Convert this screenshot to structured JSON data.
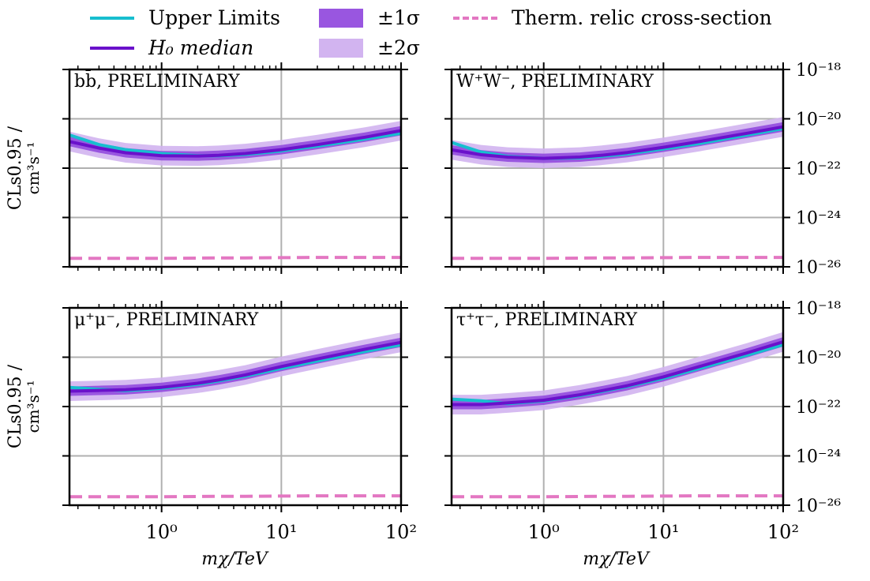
{
  "figure": {
    "legend": {
      "upper_limits": {
        "label": "Upper Limits",
        "color": "#17becf"
      },
      "median": {
        "label": "H₀ median",
        "color": "#6a11cb"
      },
      "sigma1": {
        "label": "±1σ",
        "color": "#8e44dd"
      },
      "sigma2": {
        "label": "±2σ",
        "color": "#d2b4f0"
      },
      "relic": {
        "label": "Therm. relic cross-section",
        "color": "#e377c2"
      }
    },
    "ylabel_main": "CLs0.95 /",
    "ylabel_unit": "cm³s⁻¹",
    "xlabel": "mχ/TeV",
    "grid_color": "#b0b0b0"
  },
  "chart_data": [
    {
      "type": "line",
      "title": "bb̄, PRELIMINARY",
      "xscale": "log",
      "yscale": "log",
      "xlim": [
        0.17,
        100
      ],
      "ylim": [
        1e-26,
        1e-18
      ],
      "xlabel": "mχ/TeV",
      "ylabel": "CLs^0.95 / cm^3 s^-1",
      "xticklabels": [
        "10⁰",
        "10¹",
        "10²"
      ],
      "yticklabels": [
        "10⁻¹⁸",
        "10⁻²⁰",
        "10⁻²²",
        "10⁻²⁴",
        "10⁻²⁶"
      ],
      "x": [
        0.17,
        0.3,
        0.5,
        1,
        2,
        3,
        5,
        10,
        20,
        50,
        100
      ],
      "series": [
        {
          "name": "Upper Limits",
          "values": [
            2.2e-21,
            9e-22,
            5.6e-22,
            3.9e-22,
            3.2e-22,
            3.2e-22,
            3.6e-22,
            5e-22,
            7.8e-22,
            1.5e-21,
            2.6e-21
          ]
        },
        {
          "name": "H0 median",
          "values": [
            1.2e-21,
            6.5e-22,
            4.2e-22,
            3.2e-22,
            3.1e-22,
            3.3e-22,
            3.9e-22,
            5.6e-22,
            9e-22,
            1.8e-21,
            3.3e-21
          ]
        },
        {
          "name": "Therm. relic cross-section",
          "values": [
            2.2e-26,
            2.2e-26,
            2.2e-26,
            2.2e-26,
            2.25e-26,
            2.3e-26,
            2.3e-26,
            2.35e-26,
            2.4e-26,
            2.4e-26,
            2.4e-26
          ]
        }
      ],
      "band_factors": {
        "sigma1": 1.55,
        "sigma2": 2.5
      }
    },
    {
      "type": "line",
      "title": "W⁺W⁻, PRELIMINARY",
      "xscale": "log",
      "yscale": "log",
      "xlim": [
        0.17,
        100
      ],
      "ylim": [
        1e-26,
        1e-18
      ],
      "xlabel": "mχ/TeV",
      "ylabel": "",
      "xticklabels": [
        "10⁰",
        "10¹",
        "10²"
      ],
      "yticklabels": [
        "10⁻¹⁸",
        "10⁻²⁰",
        "10⁻²²",
        "10⁻²⁴",
        "10⁻²⁶"
      ],
      "x": [
        0.17,
        0.3,
        0.5,
        1,
        2,
        3,
        5,
        10,
        20,
        50,
        100
      ],
      "series": [
        {
          "name": "Upper Limits",
          "values": [
            1.1e-21,
            4.5e-22,
            3e-22,
            2.5e-22,
            2.6e-22,
            3e-22,
            3.8e-22,
            6e-22,
            1e-21,
            2.2e-21,
            4e-21
          ]
        },
        {
          "name": "H0 median",
          "values": [
            5.5e-22,
            3.5e-22,
            2.8e-22,
            2.5e-22,
            2.8e-22,
            3.3e-22,
            4.3e-22,
            7e-22,
            1.2e-21,
            2.6e-21,
            4.7e-21
          ]
        },
        {
          "name": "Therm. relic cross-section",
          "values": [
            2.2e-26,
            2.2e-26,
            2.2e-26,
            2.2e-26,
            2.25e-26,
            2.3e-26,
            2.3e-26,
            2.35e-26,
            2.4e-26,
            2.4e-26,
            2.4e-26
          ]
        }
      ],
      "band_factors": {
        "sigma1": 1.55,
        "sigma2": 2.5
      }
    },
    {
      "type": "line",
      "title": "μ⁺μ⁻, PRELIMINARY",
      "xscale": "log",
      "yscale": "log",
      "xlim": [
        0.17,
        100
      ],
      "ylim": [
        1e-26,
        1e-18
      ],
      "xlabel": "mχ/TeV",
      "ylabel": "CLs^0.95 / cm^3 s^-1",
      "xticklabels": [
        "10⁰",
        "10¹",
        "10²"
      ],
      "yticklabels": [
        "10⁻¹⁸",
        "10⁻²⁰",
        "10⁻²²",
        "10⁻²⁴",
        "10⁻²⁶"
      ],
      "x": [
        0.17,
        0.3,
        0.5,
        1,
        2,
        3,
        5,
        10,
        20,
        50,
        100
      ],
      "series": [
        {
          "name": "Upper Limits",
          "values": [
            6e-22,
            5e-22,
            4.4e-22,
            5.5e-22,
            8e-22,
            1.1e-21,
            1.7e-21,
            3.5e-21,
            7e-21,
            1.7e-20,
            3.2e-20
          ]
        },
        {
          "name": "H0 median",
          "values": [
            4.2e-22,
            4.5e-22,
            4.8e-22,
            6e-22,
            8.8e-22,
            1.2e-21,
            1.9e-21,
            4.2e-21,
            8.5e-21,
            2.1e-20,
            4e-20
          ]
        },
        {
          "name": "Therm. relic cross-section",
          "values": [
            2.2e-26,
            2.2e-26,
            2.2e-26,
            2.2e-26,
            2.25e-26,
            2.3e-26,
            2.3e-26,
            2.35e-26,
            2.4e-26,
            2.4e-26,
            2.4e-26
          ]
        }
      ],
      "band_factors": {
        "sigma1": 1.55,
        "sigma2": 2.5
      }
    },
    {
      "type": "line",
      "title": "τ⁺τ⁻, PRELIMINARY",
      "xscale": "log",
      "yscale": "log",
      "xlim": [
        0.17,
        100
      ],
      "ylim": [
        1e-26,
        1e-18
      ],
      "xlabel": "mχ/TeV",
      "ylabel": "",
      "xticklabels": [
        "10⁰",
        "10¹",
        "10²"
      ],
      "yticklabels": [
        "10⁻¹⁸",
        "10⁻²⁰",
        "10⁻²²",
        "10⁻²⁴",
        "10⁻²⁶"
      ],
      "x": [
        0.17,
        0.3,
        0.5,
        1,
        2,
        3,
        5,
        10,
        20,
        50,
        100
      ],
      "series": [
        {
          "name": "Upper Limits",
          "values": [
            2e-22,
            1.7e-22,
            1.3e-22,
            1.7e-22,
            2.8e-22,
            4e-22,
            6.5e-22,
            1.4e-21,
            3.5e-21,
            1.2e-20,
            3.2e-20
          ]
        },
        {
          "name": "H0 median",
          "values": [
            1.2e-22,
            1.2e-22,
            1.4e-22,
            1.8e-22,
            3e-22,
            4.3e-22,
            7e-22,
            1.6e-21,
            4.2e-21,
            1.5e-20,
            4.2e-20
          ]
        },
        {
          "name": "Therm. relic cross-section",
          "values": [
            2.2e-26,
            2.2e-26,
            2.2e-26,
            2.2e-26,
            2.25e-26,
            2.3e-26,
            2.3e-26,
            2.35e-26,
            2.4e-26,
            2.4e-26,
            2.4e-26
          ]
        }
      ],
      "band_factors": {
        "sigma1": 1.55,
        "sigma2": 2.5
      }
    }
  ]
}
